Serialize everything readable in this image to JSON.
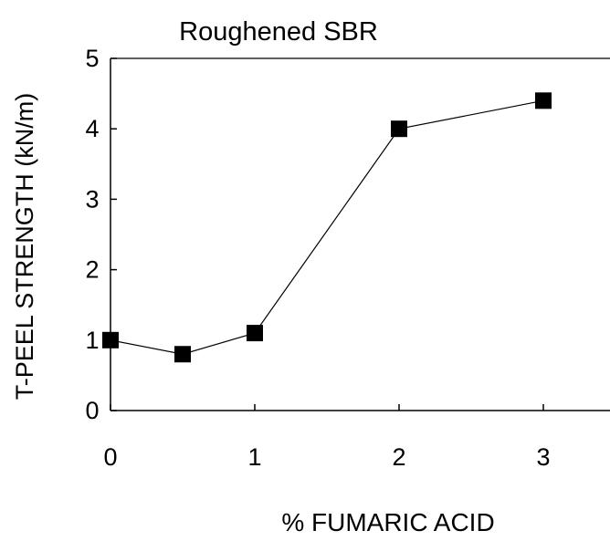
{
  "chart_data": {
    "type": "line",
    "title": "Roughened SBR",
    "xlabel": "% FUMARIC ACID",
    "ylabel": "T-PEEL STRENGTH (kN/m)",
    "x": [
      0,
      0.5,
      1,
      2,
      3
    ],
    "series": [
      {
        "values": [
          1.0,
          0.8,
          1.1,
          4.0,
          4.4
        ],
        "marker": "square",
        "color": "#000000"
      }
    ],
    "x_ticks": [
      "0",
      "1",
      "2",
      "3"
    ],
    "y_ticks": [
      "0",
      "1",
      "2",
      "3",
      "4",
      "5"
    ],
    "xlim": [
      0,
      3.2
    ],
    "ylim": [
      0,
      5
    ],
    "grid": false,
    "legend": "none"
  }
}
